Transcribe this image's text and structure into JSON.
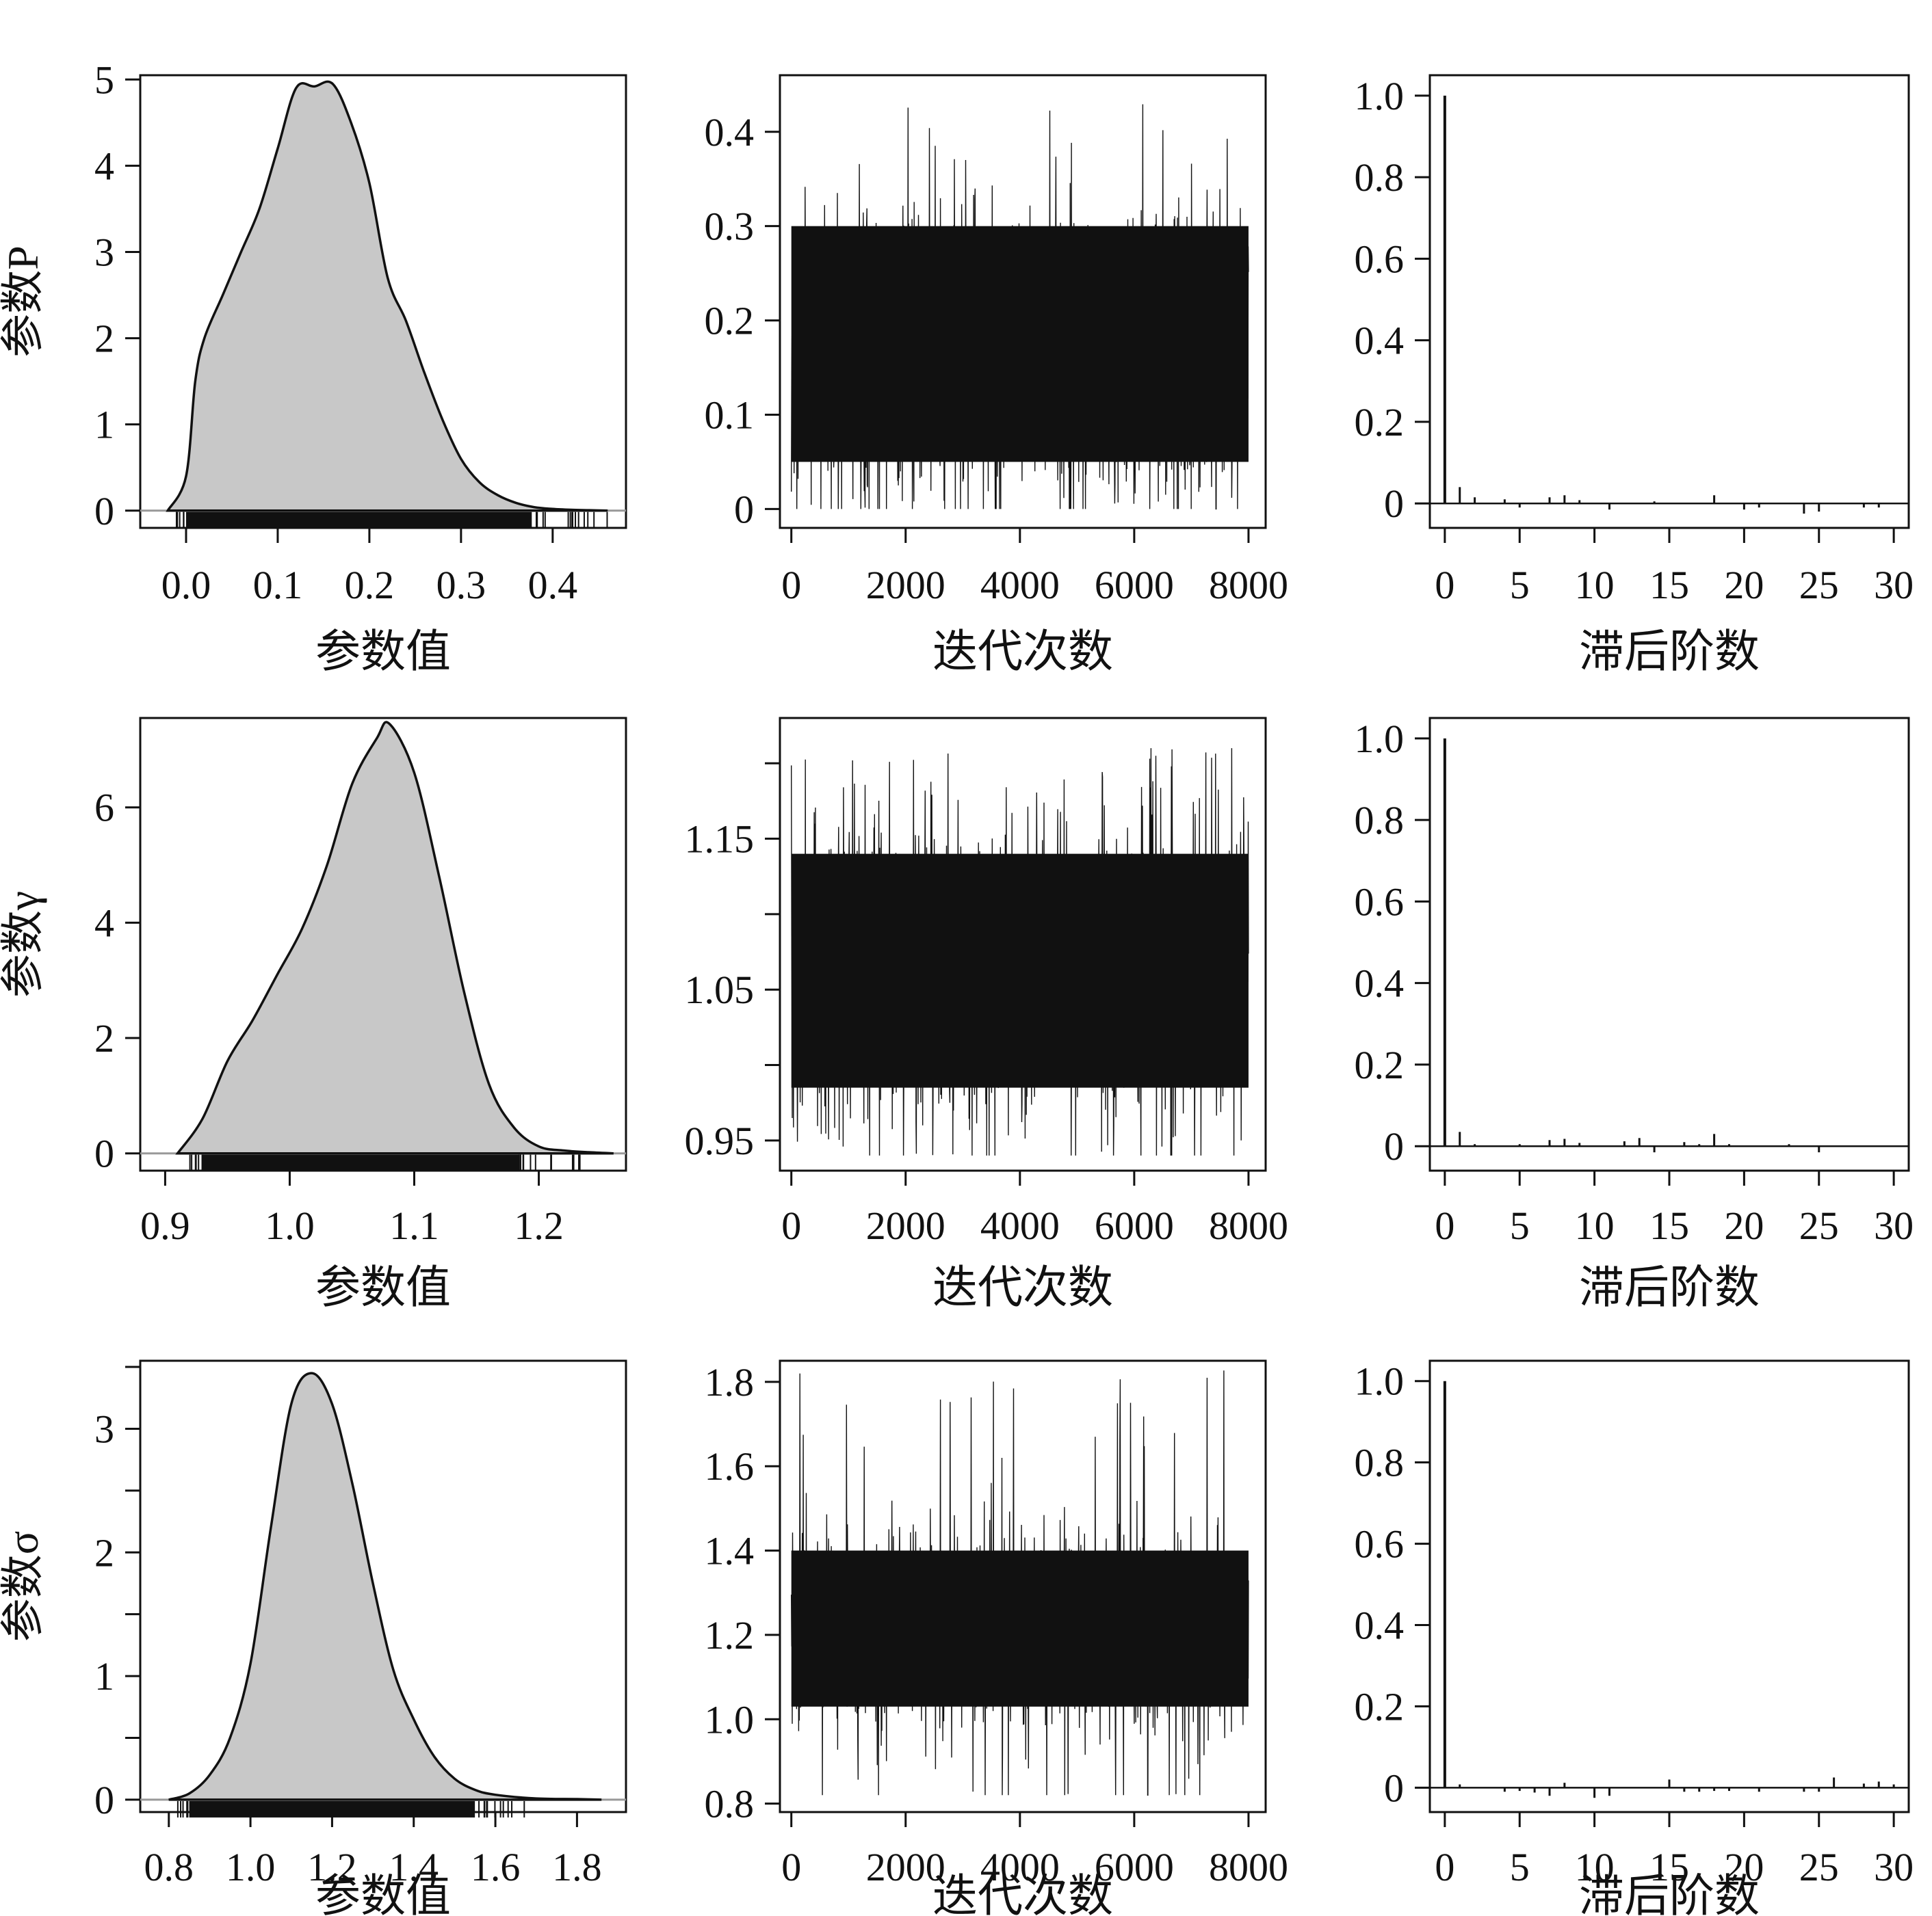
{
  "chart_data": [
    {
      "type": "area",
      "panel": "density",
      "row": "P",
      "xlabel": "参数值",
      "ylabel": "参数P",
      "xlim": [
        -0.05,
        0.48
      ],
      "ylim": [
        -0.2,
        5.05
      ],
      "xticks": [
        0.0,
        0.1,
        0.2,
        0.3,
        0.4
      ],
      "xtick_labels": [
        "0.0",
        "0.1",
        "0.2",
        "0.3",
        "0.4"
      ],
      "yticks": [
        0,
        1,
        2,
        3,
        4,
        5
      ],
      "ytick_labels": [
        "0",
        "1",
        "2",
        "3",
        "4",
        "5"
      ],
      "x": [
        -0.02,
        0.0,
        0.01,
        0.02,
        0.04,
        0.06,
        0.08,
        0.1,
        0.12,
        0.14,
        0.16,
        0.18,
        0.2,
        0.22,
        0.24,
        0.26,
        0.28,
        0.3,
        0.32,
        0.34,
        0.36,
        0.38,
        0.4,
        0.42,
        0.44,
        0.46
      ],
      "y": [
        0.0,
        0.4,
        1.5,
        2.0,
        2.5,
        3.0,
        3.5,
        4.2,
        4.9,
        4.92,
        4.95,
        4.5,
        3.8,
        2.7,
        2.2,
        1.6,
        1.05,
        0.6,
        0.33,
        0.18,
        0.09,
        0.04,
        0.02,
        0.01,
        0.005,
        0.0
      ],
      "rug_range": [
        0.0,
        0.46
      ],
      "grid": false
    },
    {
      "type": "line",
      "panel": "trace",
      "row": "P",
      "xlabel": "迭代次数",
      "xlim": [
        -200,
        8300
      ],
      "ylim": [
        -0.02,
        0.46
      ],
      "xticks": [
        0,
        2000,
        4000,
        6000,
        8000
      ],
      "xtick_labels": [
        "0",
        "2000",
        "4000",
        "6000",
        "8000"
      ],
      "yticks": [
        0,
        0.1,
        0.2,
        0.3,
        0.4
      ],
      "ytick_labels": [
        "0",
        "0.1",
        "0.2",
        "0.3",
        "0.4"
      ],
      "n_iter": 8000,
      "center": 0.16,
      "band": [
        0.05,
        0.3
      ],
      "min": 0.0,
      "max": 0.43,
      "grid": false
    },
    {
      "type": "bar",
      "panel": "acf",
      "row": "P",
      "xlabel": "滞后阶数",
      "xlim": [
        -1,
        31
      ],
      "ylim": [
        -0.06,
        1.05
      ],
      "xticks": [
        0,
        5,
        10,
        15,
        20,
        25,
        30
      ],
      "xtick_labels": [
        "0",
        "5",
        "10",
        "15",
        "20",
        "25",
        "30"
      ],
      "yticks": [
        0,
        0.2,
        0.4,
        0.6,
        0.8,
        1.0
      ],
      "ytick_labels": [
        "0",
        "0.2",
        "0.4",
        "0.6",
        "0.8",
        "1.0"
      ],
      "lags": [
        0,
        1,
        2,
        3,
        4,
        5,
        6,
        7,
        8,
        9,
        10,
        11,
        12,
        13,
        14,
        15,
        16,
        17,
        18,
        19,
        20,
        21,
        22,
        23,
        24,
        25,
        26,
        27,
        28,
        29,
        30
      ],
      "values": [
        1.0,
        0.04,
        0.015,
        0.0,
        0.01,
        -0.01,
        0.0,
        0.015,
        0.02,
        0.008,
        0.0,
        -0.015,
        0.0,
        0.0,
        0.005,
        0.0,
        0.0,
        0.0,
        0.02,
        0.0,
        -0.015,
        -0.01,
        0.0,
        0.0,
        -0.025,
        -0.02,
        0.0,
        0.0,
        -0.01,
        -0.01,
        0.0
      ],
      "grid": false
    },
    {
      "type": "area",
      "panel": "density",
      "row": "gamma",
      "xlabel": "参数值",
      "ylabel": "参数γ",
      "xlim": [
        0.88,
        1.27
      ],
      "ylim": [
        -0.3,
        7.55
      ],
      "xticks": [
        0.9,
        1.0,
        1.1,
        1.2
      ],
      "xtick_labels": [
        "0.9",
        "1.0",
        "1.1",
        "1.2"
      ],
      "yticks": [
        0,
        2,
        4,
        6
      ],
      "ytick_labels": [
        "0",
        "2",
        "4",
        "6"
      ],
      "x": [
        0.91,
        0.93,
        0.95,
        0.97,
        0.99,
        1.01,
        1.03,
        1.05,
        1.07,
        1.08,
        1.1,
        1.12,
        1.14,
        1.16,
        1.18,
        1.2,
        1.22,
        1.24,
        1.26
      ],
      "y": [
        0.0,
        0.6,
        1.6,
        2.3,
        3.1,
        3.9,
        5.0,
        6.4,
        7.2,
        7.45,
        6.6,
        4.8,
        2.8,
        1.2,
        0.45,
        0.12,
        0.05,
        0.02,
        0.0
      ],
      "rug_range": [
        0.93,
        1.24
      ],
      "grid": false
    },
    {
      "type": "line",
      "panel": "trace",
      "row": "gamma",
      "xlabel": "迭代次数",
      "xlim": [
        -200,
        8300
      ],
      "ylim": [
        0.93,
        1.23
      ],
      "xticks": [
        0,
        2000,
        4000,
        6000,
        8000
      ],
      "xtick_labels": [
        "0",
        "2000",
        "4000",
        "6000",
        "8000"
      ],
      "yticks": [
        0.95,
        1.0,
        1.05,
        1.1,
        1.15,
        1.2
      ],
      "ytick_labels": [
        "0.95",
        "",
        "1.05",
        "",
        "1.15",
        ""
      ],
      "n_iter": 8000,
      "center": 1.06,
      "band": [
        0.985,
        1.14
      ],
      "min": 0.94,
      "max": 1.21,
      "grid": false
    },
    {
      "type": "bar",
      "panel": "acf",
      "row": "gamma",
      "xlabel": "滞后阶数",
      "xlim": [
        -1,
        31
      ],
      "ylim": [
        -0.06,
        1.05
      ],
      "xticks": [
        0,
        5,
        10,
        15,
        20,
        25,
        30
      ],
      "xtick_labels": [
        "0",
        "5",
        "10",
        "15",
        "20",
        "25",
        "30"
      ],
      "yticks": [
        0,
        0.2,
        0.4,
        0.6,
        0.8,
        1.0
      ],
      "ytick_labels": [
        "0",
        "0.2",
        "0.4",
        "0.6",
        "0.8",
        "1.0"
      ],
      "lags": [
        0,
        1,
        2,
        3,
        4,
        5,
        6,
        7,
        8,
        9,
        10,
        11,
        12,
        13,
        14,
        15,
        16,
        17,
        18,
        19,
        20,
        21,
        22,
        23,
        24,
        25,
        26,
        27,
        28,
        29,
        30
      ],
      "values": [
        1.0,
        0.035,
        0.005,
        0.0,
        0.0,
        0.005,
        0.0,
        0.015,
        0.018,
        0.008,
        0.0,
        0.0,
        0.012,
        0.02,
        -0.015,
        0.0,
        0.01,
        0.005,
        0.03,
        0.005,
        0.0,
        0.0,
        0.0,
        0.005,
        0.0,
        -0.015,
        0.0,
        0.0,
        0.0,
        0.0,
        0.0
      ],
      "grid": false
    },
    {
      "type": "area",
      "panel": "density",
      "row": "sigma",
      "xlabel": "参数值",
      "ylabel": "参数σ",
      "xlim": [
        0.73,
        1.92
      ],
      "ylim": [
        -0.1,
        3.55
      ],
      "xticks": [
        0.8,
        1.0,
        1.2,
        1.4,
        1.6,
        1.8
      ],
      "xtick_labels": [
        "0.8",
        "1.0",
        "1.2",
        "1.4",
        "1.6",
        "1.8"
      ],
      "yticks": [
        0,
        0.5,
        1,
        1.5,
        2,
        2.5,
        3,
        3.5
      ],
      "ytick_labels": [
        "0",
        "",
        "1",
        "",
        "2",
        "",
        "3",
        ""
      ],
      "x": [
        0.8,
        0.85,
        0.9,
        0.95,
        1.0,
        1.05,
        1.1,
        1.15,
        1.2,
        1.25,
        1.3,
        1.35,
        1.4,
        1.45,
        1.5,
        1.55,
        1.6,
        1.7,
        1.8,
        1.86
      ],
      "y": [
        0.0,
        0.05,
        0.2,
        0.5,
        1.1,
        2.2,
        3.2,
        3.45,
        3.2,
        2.55,
        1.75,
        1.05,
        0.65,
        0.35,
        0.17,
        0.08,
        0.04,
        0.01,
        0.005,
        0.0
      ],
      "rug_range": [
        0.85,
        1.7
      ],
      "grid": false
    },
    {
      "type": "line",
      "panel": "trace",
      "row": "sigma",
      "xlabel": "迭代次数",
      "xlim": [
        -200,
        8300
      ],
      "ylim": [
        0.78,
        1.85
      ],
      "xticks": [
        0,
        2000,
        4000,
        6000,
        8000
      ],
      "xtick_labels": [
        "0",
        "2000",
        "4000",
        "6000",
        "8000"
      ],
      "yticks": [
        0.8,
        1.0,
        1.2,
        1.4,
        1.6,
        1.8
      ],
      "ytick_labels": [
        "0.8",
        "1.0",
        "1.2",
        "1.4",
        "1.6",
        "1.8"
      ],
      "n_iter": 8000,
      "center": 1.2,
      "band": [
        1.03,
        1.4
      ],
      "min": 0.82,
      "max": 1.83,
      "grid": false
    },
    {
      "type": "bar",
      "panel": "acf",
      "row": "sigma",
      "xlabel": "滞后阶数",
      "xlim": [
        -1,
        31
      ],
      "ylim": [
        -0.06,
        1.05
      ],
      "xticks": [
        0,
        5,
        10,
        15,
        20,
        25,
        30
      ],
      "xtick_labels": [
        "0",
        "5",
        "10",
        "15",
        "20",
        "25",
        "30"
      ],
      "yticks": [
        0,
        0.2,
        0.4,
        0.6,
        0.8,
        1.0
      ],
      "ytick_labels": [
        "0",
        "0.2",
        "0.4",
        "0.6",
        "0.8",
        "1.0"
      ],
      "lags": [
        0,
        1,
        2,
        3,
        4,
        5,
        6,
        7,
        8,
        9,
        10,
        11,
        12,
        13,
        14,
        15,
        16,
        17,
        18,
        19,
        20,
        21,
        22,
        23,
        24,
        25,
        26,
        27,
        28,
        29,
        30
      ],
      "values": [
        1.0,
        0.008,
        0.0,
        0.0,
        -0.01,
        -0.008,
        -0.012,
        -0.02,
        0.012,
        0.0,
        -0.025,
        -0.02,
        0.0,
        0.0,
        0.0,
        0.02,
        -0.01,
        -0.01,
        -0.008,
        -0.008,
        0.0,
        -0.01,
        0.0,
        0.0,
        -0.01,
        -0.01,
        0.025,
        0.0,
        0.01,
        0.015,
        0.008
      ],
      "grid": false
    }
  ]
}
